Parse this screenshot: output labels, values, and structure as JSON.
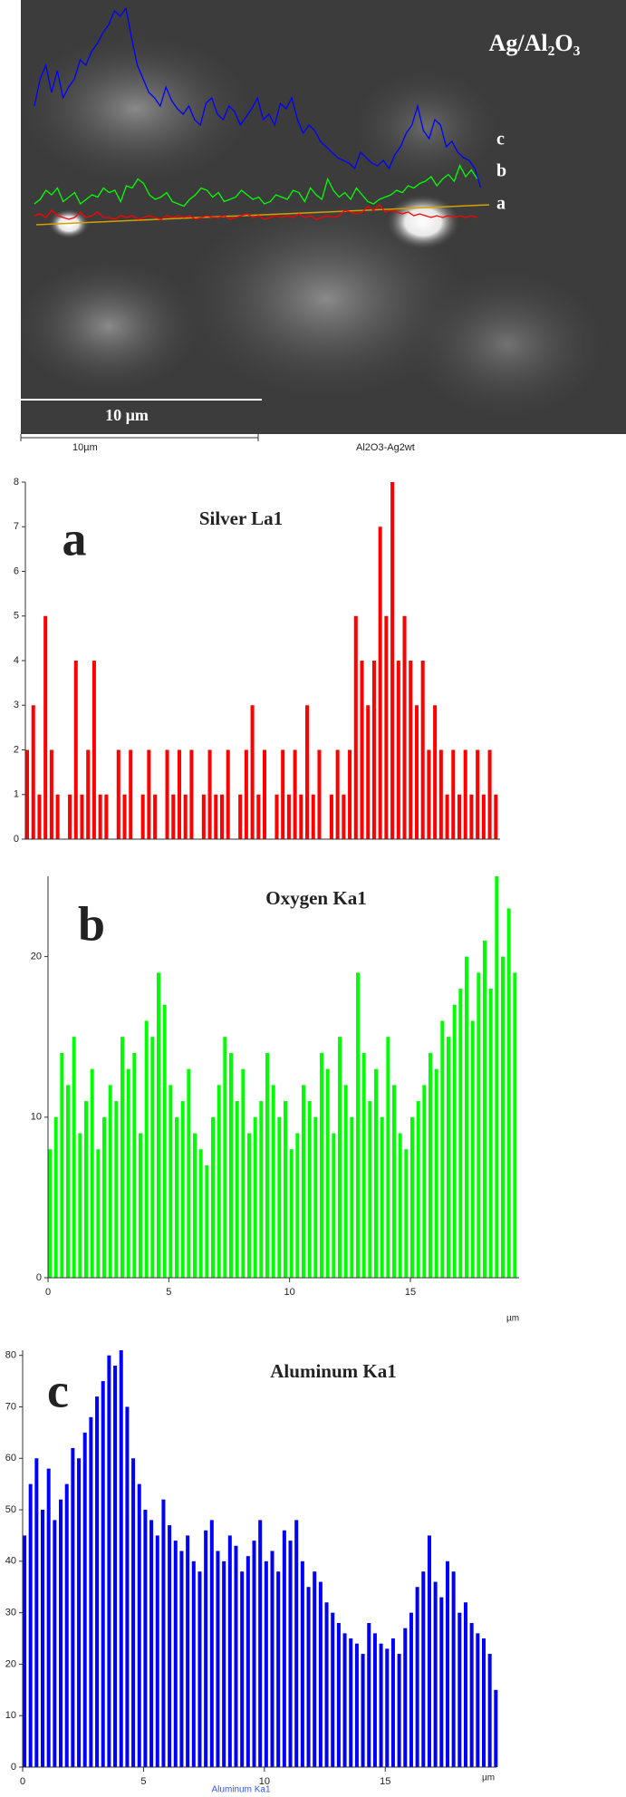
{
  "sem_image": {
    "title": "Ag/Al₂O₃",
    "line_labels": [
      "c",
      "b",
      "a"
    ],
    "scale_bar": "10 µm",
    "footer_scale": "10µm",
    "footer_sample": "Al2O3-Ag2wt"
  },
  "chart_data": [
    {
      "type": "bar",
      "panel_label": "a",
      "title": "Silver La1",
      "color": "#ff0000",
      "x": [
        0,
        0.25,
        0.5,
        0.75,
        1,
        1.25,
        1.5,
        1.75,
        2,
        2.25,
        2.5,
        2.75,
        3,
        3.25,
        3.5,
        3.75,
        4,
        4.25,
        4.5,
        4.75,
        5,
        5.25,
        5.5,
        5.75,
        6,
        6.25,
        6.5,
        6.75,
        7,
        7.25,
        7.5,
        7.75,
        8,
        8.25,
        8.5,
        8.75,
        9,
        9.25,
        9.5,
        9.75,
        10,
        10.25,
        10.5,
        10.75,
        11,
        11.25,
        11.5,
        11.75,
        12,
        12.25,
        12.5,
        12.75,
        13,
        13.25,
        13.5,
        13.75,
        14,
        14.25,
        14.5,
        14.75,
        15,
        15.25,
        15.5,
        15.75,
        16,
        16.25,
        16.5,
        16.75,
        17,
        17.25,
        17.5,
        17.75,
        18,
        18.25,
        18.5,
        18.75,
        19,
        19.25
      ],
      "values": [
        2,
        3,
        1,
        5,
        2,
        1,
        0,
        1,
        4,
        1,
        2,
        4,
        1,
        1,
        0,
        2,
        1,
        2,
        0,
        1,
        2,
        1,
        0,
        2,
        1,
        2,
        1,
        2,
        0,
        1,
        2,
        1,
        1,
        2,
        0,
        1,
        2,
        3,
        1,
        2,
        0,
        1,
        2,
        1,
        2,
        1,
        3,
        1,
        2,
        0,
        1,
        2,
        1,
        2,
        5,
        4,
        3,
        4,
        7,
        5,
        8,
        4,
        5,
        4,
        3,
        4,
        2,
        3,
        2,
        1,
        2,
        1,
        2,
        1,
        2,
        1,
        2,
        1
      ],
      "xlim": [
        0,
        19.5
      ],
      "ylim": [
        0,
        8
      ],
      "yticks": [
        0,
        1,
        2,
        3,
        4,
        5,
        6,
        7,
        8
      ]
    },
    {
      "type": "bar",
      "panel_label": "b",
      "title": "Oxygen Ka1",
      "color": "#00ff00",
      "x_label": "µm",
      "x": [
        0,
        0.25,
        0.5,
        0.75,
        1,
        1.25,
        1.5,
        1.75,
        2,
        2.25,
        2.5,
        2.75,
        3,
        3.25,
        3.5,
        3.75,
        4,
        4.25,
        4.5,
        4.75,
        5,
        5.25,
        5.5,
        5.75,
        6,
        6.25,
        6.5,
        6.75,
        7,
        7.25,
        7.5,
        7.75,
        8,
        8.25,
        8.5,
        8.75,
        9,
        9.25,
        9.5,
        9.75,
        10,
        10.25,
        10.5,
        10.75,
        11,
        11.25,
        11.5,
        11.75,
        12,
        12.25,
        12.5,
        12.75,
        13,
        13.25,
        13.5,
        13.75,
        14,
        14.25,
        14.5,
        14.75,
        15,
        15.25,
        15.5,
        15.75,
        16,
        16.25,
        16.5,
        16.75,
        17,
        17.25,
        17.5,
        17.75,
        18,
        18.25,
        18.5,
        18.75,
        19,
        19.25
      ],
      "values": [
        8,
        10,
        14,
        12,
        15,
        9,
        11,
        13,
        8,
        10,
        12,
        11,
        15,
        13,
        14,
        9,
        16,
        15,
        19,
        17,
        12,
        10,
        11,
        13,
        9,
        8,
        7,
        10,
        12,
        15,
        14,
        11,
        13,
        9,
        10,
        11,
        14,
        12,
        10,
        11,
        8,
        9,
        12,
        11,
        10,
        14,
        13,
        9,
        15,
        12,
        10,
        19,
        14,
        11,
        13,
        10,
        15,
        12,
        9,
        8,
        10,
        11,
        12,
        14,
        13,
        16,
        15,
        17,
        18,
        20,
        16,
        19,
        21,
        18,
        25,
        20,
        23,
        19
      ],
      "xlim": [
        0,
        19.5
      ],
      "xticks": [
        0,
        5,
        10,
        15
      ],
      "ylim": [
        0,
        25
      ],
      "yticks": [
        0,
        10,
        20
      ]
    },
    {
      "type": "bar",
      "panel_label": "c",
      "title": "Aluminum Ka1",
      "color": "#0000ff",
      "x_label": "µm",
      "footer": "Aluminum Ka1",
      "x": [
        0,
        0.25,
        0.5,
        0.75,
        1,
        1.25,
        1.5,
        1.75,
        2,
        2.25,
        2.5,
        2.75,
        3,
        3.25,
        3.5,
        3.75,
        4,
        4.25,
        4.5,
        4.75,
        5,
        5.25,
        5.5,
        5.75,
        6,
        6.25,
        6.5,
        6.75,
        7,
        7.25,
        7.5,
        7.75,
        8,
        8.25,
        8.5,
        8.75,
        9,
        9.25,
        9.5,
        9.75,
        10,
        10.25,
        10.5,
        10.75,
        11,
        11.25,
        11.5,
        11.75,
        12,
        12.25,
        12.5,
        12.75,
        13,
        13.25,
        13.5,
        13.75,
        14,
        14.25,
        14.5,
        14.75,
        15,
        15.25,
        15.5,
        15.75,
        16,
        16.25,
        16.5,
        16.75,
        17,
        17.25,
        17.5,
        17.75,
        18,
        18.25,
        18.5,
        18.75,
        19,
        19.25,
        19.5
      ],
      "values": [
        45,
        55,
        60,
        50,
        58,
        48,
        52,
        55,
        62,
        60,
        65,
        68,
        72,
        75,
        80,
        78,
        81,
        70,
        60,
        55,
        50,
        48,
        45,
        52,
        47,
        44,
        42,
        45,
        40,
        38,
        46,
        48,
        42,
        40,
        45,
        43,
        38,
        41,
        44,
        48,
        40,
        42,
        38,
        46,
        44,
        48,
        40,
        35,
        38,
        36,
        32,
        30,
        28,
        26,
        25,
        24,
        22,
        28,
        26,
        24,
        23,
        25,
        22,
        27,
        30,
        35,
        38,
        45,
        36,
        33,
        40,
        38,
        30,
        32,
        28,
        26,
        25,
        22,
        15
      ],
      "xlim": [
        0,
        19.6
      ],
      "xticks": [
        0,
        5,
        10,
        15
      ],
      "ylim": [
        0,
        81
      ],
      "yticks": [
        0,
        10,
        20,
        30,
        40,
        50,
        60,
        70,
        80
      ]
    }
  ]
}
